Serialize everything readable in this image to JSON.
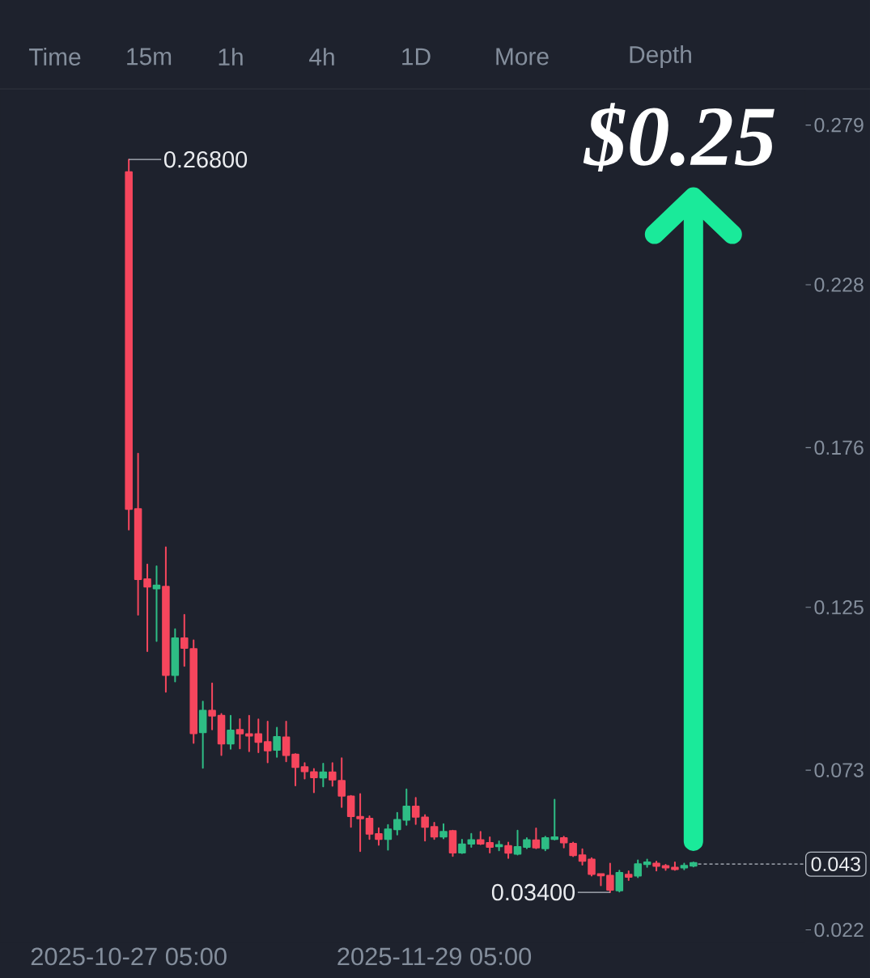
{
  "chart_data": {
    "type": "candlestick",
    "x": [
      "2025-10-27T05:00",
      "2025-10-28T05:00",
      "2025-10-29T05:00",
      "2025-10-30T05:00",
      "2025-10-31T05:00",
      "2025-11-01T05:00",
      "2025-11-02T05:00",
      "2025-11-03T05:00",
      "2025-11-04T05:00",
      "2025-11-05T05:00",
      "2025-11-06T05:00",
      "2025-11-07T05:00",
      "2025-11-08T05:00",
      "2025-11-09T05:00",
      "2025-11-10T05:00",
      "2025-11-11T05:00",
      "2025-11-12T05:00",
      "2025-11-13T05:00",
      "2025-11-14T05:00",
      "2025-11-15T05:00",
      "2025-11-16T05:00",
      "2025-11-17T05:00",
      "2025-11-18T05:00",
      "2025-11-19T05:00",
      "2025-11-20T05:00",
      "2025-11-21T05:00",
      "2025-11-22T05:00",
      "2025-11-23T05:00",
      "2025-11-24T05:00",
      "2025-11-25T05:00",
      "2025-11-26T05:00",
      "2025-11-27T05:00",
      "2025-11-28T05:00",
      "2025-11-29T05:00",
      "2025-11-30T05:00",
      "2025-12-01T05:00",
      "2025-12-02T05:00",
      "2025-12-03T05:00",
      "2025-12-04T05:00",
      "2025-12-05T05:00",
      "2025-12-06T05:00",
      "2025-12-07T05:00",
      "2025-12-08T05:00",
      "2025-12-09T05:00",
      "2025-12-10T05:00",
      "2025-12-11T05:00",
      "2025-12-12T05:00",
      "2025-12-13T05:00",
      "2025-12-14T05:00",
      "2025-12-15T05:00",
      "2025-12-16T05:00",
      "2025-12-17T05:00",
      "2025-12-18T05:00",
      "2025-12-19T05:00",
      "2025-12-20T05:00",
      "2025-12-21T05:00",
      "2025-12-22T05:00",
      "2025-12-23T05:00",
      "2025-12-24T05:00",
      "2025-12-25T05:00",
      "2025-12-26T05:00",
      "2025-12-27T05:00"
    ],
    "ohlc": [
      [
        0.264,
        0.268,
        0.1498,
        0.1564
      ],
      [
        0.1564,
        0.1741,
        0.1226,
        0.134
      ],
      [
        0.134,
        0.1387,
        0.111,
        0.1316
      ],
      [
        0.131,
        0.1381,
        0.1142,
        0.132
      ],
      [
        0.1316,
        0.1442,
        0.098,
        0.1034
      ],
      [
        0.1034,
        0.118,
        0.1013,
        0.1151
      ],
      [
        0.1151,
        0.1226,
        0.1063,
        0.112
      ],
      [
        0.1117,
        0.1145,
        0.0817,
        0.0848
      ],
      [
        0.0851,
        0.0949,
        0.0737,
        0.092
      ],
      [
        0.092,
        0.1007,
        0.086,
        0.0904
      ],
      [
        0.0904,
        0.091,
        0.0778,
        0.0815
      ],
      [
        0.0815,
        0.0904,
        0.0798,
        0.0857
      ],
      [
        0.0859,
        0.0893,
        0.0799,
        0.0847
      ],
      [
        0.0845,
        0.0904,
        0.079,
        0.084
      ],
      [
        0.0845,
        0.0892,
        0.0787,
        0.082
      ],
      [
        0.082,
        0.0885,
        0.0755,
        0.0793
      ],
      [
        0.0795,
        0.0866,
        0.0772,
        0.0836
      ],
      [
        0.0835,
        0.0885,
        0.0758,
        0.0778
      ],
      [
        0.078,
        0.0782,
        0.0681,
        0.074
      ],
      [
        0.074,
        0.0753,
        0.0703,
        0.0726
      ],
      [
        0.0724,
        0.0734,
        0.0659,
        0.0707
      ],
      [
        0.0706,
        0.0751,
        0.0678,
        0.0723
      ],
      [
        0.0723,
        0.0753,
        0.068,
        0.07
      ],
      [
        0.0696,
        0.0768,
        0.0612,
        0.0648
      ],
      [
        0.0646,
        0.0648,
        0.0549,
        0.0583
      ],
      [
        0.0581,
        0.0654,
        0.0471,
        0.0576
      ],
      [
        0.0575,
        0.0583,
        0.051,
        0.0527
      ],
      [
        0.0526,
        0.0545,
        0.0491,
        0.051
      ],
      [
        0.051,
        0.0555,
        0.0476,
        0.0541
      ],
      [
        0.0541,
        0.0594,
        0.0524,
        0.0571
      ],
      [
        0.0571,
        0.0669,
        0.0555,
        0.0614
      ],
      [
        0.0614,
        0.0642,
        0.0558,
        0.0581
      ],
      [
        0.0579,
        0.0587,
        0.0505,
        0.0549
      ],
      [
        0.0549,
        0.0562,
        0.051,
        0.0518
      ],
      [
        0.0518,
        0.0558,
        0.0512,
        0.0533
      ],
      [
        0.0536,
        0.0537,
        0.0456,
        0.0467
      ],
      [
        0.0467,
        0.0508,
        0.0465,
        0.0493
      ],
      [
        0.0495,
        0.0527,
        0.0485,
        0.0507
      ],
      [
        0.0507,
        0.0533,
        0.0493,
        0.0495
      ],
      [
        0.0498,
        0.0516,
        0.0467,
        0.0485
      ],
      [
        0.0487,
        0.0503,
        0.0474,
        0.0491
      ],
      [
        0.0488,
        0.0499,
        0.0449,
        0.0466
      ],
      [
        0.0463,
        0.0537,
        0.046,
        0.0485
      ],
      [
        0.0485,
        0.0513,
        0.048,
        0.0507
      ],
      [
        0.0506,
        0.0544,
        0.048,
        0.0483
      ],
      [
        0.048,
        0.0518,
        0.0474,
        0.0513
      ],
      [
        0.051,
        0.0636,
        0.0508,
        0.0516
      ],
      [
        0.0513,
        0.0518,
        0.0483,
        0.0499
      ],
      [
        0.0495,
        0.0499,
        0.0455,
        0.0458
      ],
      [
        0.0458,
        0.0478,
        0.0428,
        0.044
      ],
      [
        0.0445,
        0.0449,
        0.0393,
        0.0398
      ],
      [
        0.0398,
        0.0398,
        0.0362,
        0.0394
      ],
      [
        0.0393,
        0.0432,
        0.034,
        0.0348
      ],
      [
        0.0346,
        0.0409,
        0.0342,
        0.0402
      ],
      [
        0.0396,
        0.0407,
        0.0379,
        0.0389
      ],
      [
        0.0393,
        0.0442,
        0.0388,
        0.043
      ],
      [
        0.043,
        0.0445,
        0.0421,
        0.0436
      ],
      [
        0.0432,
        0.0438,
        0.0409,
        0.0424
      ],
      [
        0.0424,
        0.0428,
        0.0411,
        0.0419
      ],
      [
        0.0419,
        0.0436,
        0.0411,
        0.0414
      ],
      [
        0.0419,
        0.0432,
        0.0413,
        0.0425
      ],
      [
        0.0425,
        0.0436,
        0.0422,
        0.0434
      ]
    ],
    "colors": [
      "#f6465d",
      "#f6465d",
      "#f6465d",
      "#2ebd85",
      "#f6465d",
      "#2ebd85",
      "#f6465d",
      "#f6465d",
      "#2ebd85",
      "#f6465d",
      "#f6465d",
      "#2ebd85",
      "#f6465d",
      "#f6465d",
      "#f6465d",
      "#f6465d",
      "#2ebd85",
      "#f6465d",
      "#f6465d",
      "#f6465d",
      "#f6465d",
      "#2ebd85",
      "#f6465d",
      "#f6465d",
      "#f6465d",
      "#f6465d",
      "#f6465d",
      "#f6465d",
      "#2ebd85",
      "#2ebd85",
      "#2ebd85",
      "#f6465d",
      "#f6465d",
      "#f6465d",
      "#2ebd85",
      "#f6465d",
      "#2ebd85",
      "#2ebd85",
      "#f6465d",
      "#f6465d",
      "#2ebd85",
      "#f6465d",
      "#2ebd85",
      "#2ebd85",
      "#f6465d",
      "#2ebd85",
      "#2ebd85",
      "#f6465d",
      "#f6465d",
      "#f6465d",
      "#f6465d",
      "#f6465d",
      "#f6465d",
      "#2ebd85",
      "#f6465d",
      "#2ebd85",
      "#2ebd85",
      "#f6465d",
      "#f6465d",
      "#f6465d",
      "#2ebd85",
      "#2ebd85"
    ],
    "xlim": [
      "2025-10-13T07:00",
      "2026-01-08T07:00"
    ],
    "xticks": [
      {
        "value": "2025-10-27T05:00",
        "label": "2025-10-27 05:00"
      },
      {
        "value": "2025-11-29T05:00",
        "label": "2025-11-29 05:00"
      }
    ],
    "ylim": [
      0.018,
      0.29
    ],
    "yticks": [
      0.279,
      0.228,
      0.176,
      0.125,
      0.073,
      0.022
    ],
    "ref_lines": [
      {
        "axis": "y",
        "value": 0.043,
        "label": "0.043",
        "line_style": "dashed",
        "color": "#b7bdc6"
      }
    ],
    "annotations": [
      "Time",
      "15m",
      "1h",
      "4h",
      "1D",
      "More",
      "Depth",
      "$0.25",
      {
        "text": "0.26800",
        "x": "2025-10-27T05:00",
        "y": 0.268
      },
      {
        "text": "0.03400",
        "x": "2025-12-18T05:00",
        "y": 0.034
      }
    ]
  }
}
